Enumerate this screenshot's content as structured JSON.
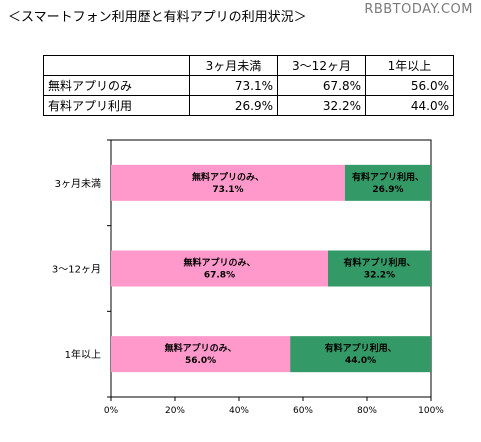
{
  "title": "＜スマートフォン利用歴と有料アプリの利用状況＞",
  "watermark": "RBBTODAY.COM",
  "table": {
    "headers": [
      "3ヶ月未満",
      "3～12ヶ月",
      "1年以上"
    ],
    "rows": [
      {
        "label": "無料アプリのみ",
        "values": [
          "73.1%",
          "67.8%",
          "56.0%"
        ]
      },
      {
        "label": "有料アプリ利用",
        "values": [
          "26.9%",
          "32.2%",
          "44.0%"
        ]
      }
    ]
  },
  "chart_data": {
    "type": "bar",
    "orientation": "horizontal",
    "stacked": true,
    "categories": [
      "3ヶ月未満",
      "3～12ヶ月",
      "1年以上"
    ],
    "series": [
      {
        "name": "無料アプリのみ",
        "values": [
          73.1,
          67.8,
          56.0
        ],
        "color": "#ff99cc"
      },
      {
        "name": "有料アプリ利用",
        "values": [
          26.9,
          32.2,
          44.0
        ],
        "color": "#339966"
      }
    ],
    "xlim": [
      0,
      100
    ],
    "xticks": [
      "0%",
      "20%",
      "40%",
      "60%",
      "80%",
      "100%"
    ],
    "grid": false,
    "legend": "none"
  }
}
